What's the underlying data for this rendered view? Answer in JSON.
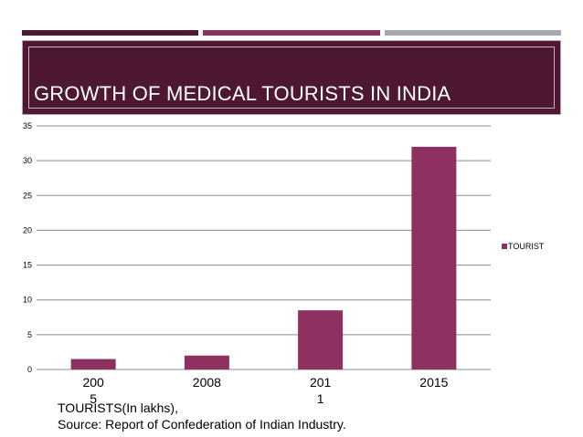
{
  "colors": {
    "stripe_1": "#4e1833",
    "stripe_2": "#8e3060",
    "stripe_3": "#a5a9ad",
    "title_band": "#4e1833",
    "bar": "#8e3060",
    "grid": "#8c8c8c"
  },
  "header": {
    "title": "GROWTH OF MEDICAL TOURISTS IN INDIA"
  },
  "chart_data": {
    "type": "bar",
    "categories": [
      "2005",
      "2008",
      "2011",
      "2015"
    ],
    "category_labels": [
      "200\n5",
      "2008",
      "201\n1",
      "2015"
    ],
    "series": [
      {
        "name": "TOURIST",
        "values": [
          1.5,
          2,
          8.5,
          32
        ]
      }
    ],
    "ylim": [
      0,
      35
    ],
    "yticks": [
      0,
      5,
      10,
      15,
      20,
      25,
      30,
      35
    ],
    "legend_position": "right",
    "grid": true,
    "title": "",
    "xlabel": "",
    "ylabel": ""
  },
  "footer": {
    "line1": "TOURISTS(In lakhs),",
    "line2": "Source: Report of Confederation of Indian Industry."
  }
}
